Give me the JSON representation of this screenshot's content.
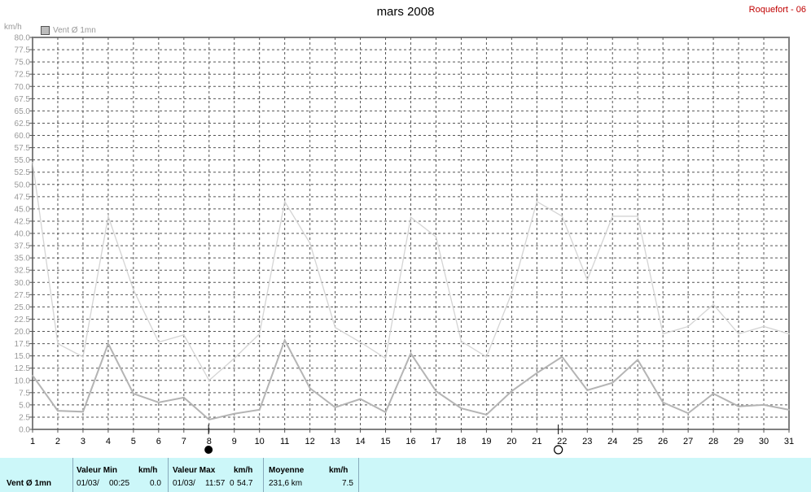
{
  "header": {
    "title": "mars 2008",
    "station": "Roquefort - 06",
    "unit": "km/h",
    "legend_label": "Vent Ø 1mn"
  },
  "chart_data": {
    "type": "line",
    "title": "mars 2008",
    "ylabel": "km/h",
    "ylim": [
      0,
      80
    ],
    "ytick_step": 2.5,
    "x": [
      1,
      2,
      3,
      4,
      5,
      6,
      7,
      8,
      9,
      10,
      11,
      12,
      13,
      14,
      15,
      16,
      17,
      18,
      19,
      20,
      21,
      22,
      23,
      24,
      25,
      26,
      27,
      28,
      29,
      30,
      31
    ],
    "xlim": [
      1,
      31
    ],
    "grid": true,
    "series": [
      {
        "name": "Vent Ø 1mn",
        "color": "#b4b4b4",
        "values": [
          11.0,
          3.8,
          3.6,
          17.5,
          7.3,
          5.5,
          6.5,
          2.0,
          3.2,
          4.0,
          18.2,
          8.4,
          4.5,
          6.2,
          3.5,
          15.5,
          7.8,
          4.3,
          3.0,
          7.8,
          11.5,
          14.8,
          8.0,
          9.5,
          14.2,
          5.5,
          3.3,
          7.3,
          4.7,
          5.0,
          4.0
        ]
      },
      {
        "color": "#d4d4d4",
        "values": [
          54.5,
          17.5,
          14.8,
          43.5,
          28.5,
          17.8,
          19.3,
          10.0,
          14.5,
          19.5,
          46.5,
          38.0,
          20.8,
          17.8,
          14.5,
          43.3,
          39.3,
          18.0,
          14.8,
          27.8,
          46.5,
          43.5,
          30.5,
          43.5,
          43.5,
          19.5,
          21.0,
          25.5,
          19.5,
          21.0,
          19.5
        ]
      }
    ],
    "moon_markers": [
      {
        "day": 7.98,
        "phase": "new"
      },
      {
        "day": 21.85,
        "phase": "full"
      }
    ]
  },
  "stats": {
    "series_label": "Vent Ø 1mn",
    "min": {
      "header": "Valeur Min",
      "unit": "km/h",
      "date": "01/03/",
      "time": "00:25",
      "value": "0.0"
    },
    "max": {
      "header": "Valeur Max",
      "unit": "km/h",
      "date": "01/03/",
      "time": "11:57",
      "value": "54.7",
      "extra": "0"
    },
    "avg": {
      "header": "Moyenne",
      "unit": "km/h",
      "distance": "231,6 km",
      "value": "7.5"
    }
  }
}
